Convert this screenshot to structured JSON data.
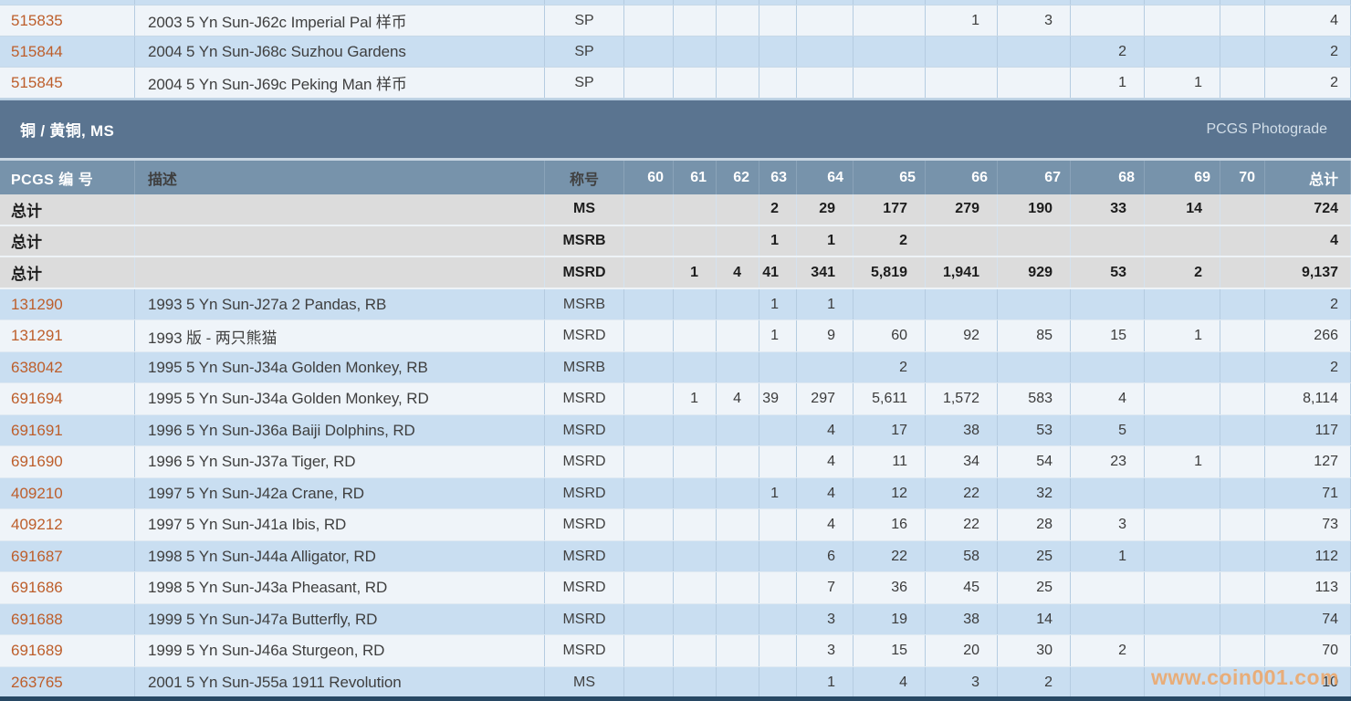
{
  "section": {
    "title": "铜 / 黄铜, MS",
    "right_label": "PCGS Photograde"
  },
  "table": {
    "headers": {
      "pcgs_no": "PCGS 编 号",
      "description": "描述",
      "designation": "称号",
      "grades": [
        "60",
        "61",
        "62",
        "63",
        "64",
        "65",
        "66",
        "67",
        "68",
        "69",
        "70"
      ],
      "total": "总计"
    },
    "sp_rows": [
      {
        "pcgs_no": "515835",
        "description": "2003 5 Yn Sun-J62c Imperial Pal 样币",
        "designation": "SP",
        "counts": {
          "66": "1",
          "67": "3"
        },
        "total": "4"
      },
      {
        "pcgs_no": "515844",
        "description": "2004 5 Yn Sun-J68c Suzhou Gardens",
        "designation": "SP",
        "counts": {
          "68": "2"
        },
        "total": "2"
      },
      {
        "pcgs_no": "515845",
        "description": "2004 5 Yn Sun-J69c Peking Man 样币",
        "designation": "SP",
        "counts": {
          "68": "1",
          "69": "1"
        },
        "total": "2"
      }
    ],
    "summary_rows": [
      {
        "label": "总计",
        "description": "",
        "designation": "MS",
        "counts": {
          "63": "2",
          "64": "29",
          "65": "177",
          "66": "279",
          "67": "190",
          "68": "33",
          "69": "14"
        },
        "total": "724"
      },
      {
        "label": "总计",
        "description": "",
        "designation": "MSRB",
        "counts": {
          "63": "1",
          "64": "1",
          "65": "2"
        },
        "total": "4"
      },
      {
        "label": "总计",
        "description": "",
        "designation": "MSRD",
        "counts": {
          "61": "1",
          "62": "4",
          "63": "41",
          "64": "341",
          "65": "5,819",
          "66": "1,941",
          "67": "929",
          "68": "53",
          "69": "2"
        },
        "total": "9,137"
      }
    ],
    "data_rows": [
      {
        "pcgs_no": "131290",
        "description": "1993 5 Yn Sun-J27a 2 Pandas, RB",
        "designation": "MSRB",
        "counts": {
          "63": "1",
          "64": "1"
        },
        "total": "2"
      },
      {
        "pcgs_no": "131291",
        "description": "1993 版 - 两只熊猫",
        "designation": "MSRD",
        "counts": {
          "63": "1",
          "64": "9",
          "65": "60",
          "66": "92",
          "67": "85",
          "68": "15",
          "69": "1"
        },
        "total": "266"
      },
      {
        "pcgs_no": "638042",
        "description": "1995 5 Yn Sun-J34a Golden Monkey, RB",
        "designation": "MSRB",
        "counts": {
          "65": "2"
        },
        "total": "2"
      },
      {
        "pcgs_no": "691694",
        "description": "1995 5 Yn Sun-J34a Golden Monkey, RD",
        "designation": "MSRD",
        "counts": {
          "61": "1",
          "62": "4",
          "63": "39",
          "64": "297",
          "65": "5,611",
          "66": "1,572",
          "67": "583",
          "68": "4"
        },
        "total": "8,114"
      },
      {
        "pcgs_no": "691691",
        "description": "1996 5 Yn Sun-J36a Baiji Dolphins, RD",
        "designation": "MSRD",
        "counts": {
          "64": "4",
          "65": "17",
          "66": "38",
          "67": "53",
          "68": "5"
        },
        "total": "117"
      },
      {
        "pcgs_no": "691690",
        "description": "1996 5 Yn Sun-J37a Tiger, RD",
        "designation": "MSRD",
        "counts": {
          "64": "4",
          "65": "11",
          "66": "34",
          "67": "54",
          "68": "23",
          "69": "1"
        },
        "total": "127"
      },
      {
        "pcgs_no": "409210",
        "description": "1997 5 Yn Sun-J42a Crane, RD",
        "designation": "MSRD",
        "counts": {
          "63": "1",
          "64": "4",
          "65": "12",
          "66": "22",
          "67": "32"
        },
        "total": "71"
      },
      {
        "pcgs_no": "409212",
        "description": "1997 5 Yn Sun-J41a Ibis, RD",
        "designation": "MSRD",
        "counts": {
          "64": "4",
          "65": "16",
          "66": "22",
          "67": "28",
          "68": "3"
        },
        "total": "73"
      },
      {
        "pcgs_no": "691687",
        "description": "1998 5 Yn Sun-J44a Alligator, RD",
        "designation": "MSRD",
        "counts": {
          "64": "6",
          "65": "22",
          "66": "58",
          "67": "25",
          "68": "1"
        },
        "total": "112"
      },
      {
        "pcgs_no": "691686",
        "description": "1998 5 Yn Sun-J43a Pheasant, RD",
        "designation": "MSRD",
        "counts": {
          "64": "7",
          "65": "36",
          "66": "45",
          "67": "25"
        },
        "total": "113"
      },
      {
        "pcgs_no": "691688",
        "description": "1999 5 Yn Sun-J47a Butterfly, RD",
        "designation": "MSRD",
        "counts": {
          "64": "3",
          "65": "19",
          "66": "38",
          "67": "14"
        },
        "total": "74"
      },
      {
        "pcgs_no": "691689",
        "description": "1999 5 Yn Sun-J46a Sturgeon, RD",
        "designation": "MSRD",
        "counts": {
          "64": "3",
          "65": "15",
          "66": "20",
          "67": "30",
          "68": "2"
        },
        "total": "70"
      },
      {
        "pcgs_no": "263765",
        "description": "2001 5 Yn Sun-J55a 1911 Revolution",
        "designation": "MS",
        "counts": {
          "64": "1",
          "65": "4",
          "66": "3",
          "67": "2"
        },
        "total": "10"
      }
    ]
  },
  "watermark": "www.coin001.com",
  "colors": {
    "section_band": "#5a7490",
    "column_header": "#7793ab",
    "summary_row": "#dcdcdc",
    "row_blue": "#c9def1",
    "row_white": "#eff4f9",
    "pcgs_link": "#bd5e2b",
    "watermark_orange": "#f0a35f",
    "bottom_bar": "#274864"
  }
}
